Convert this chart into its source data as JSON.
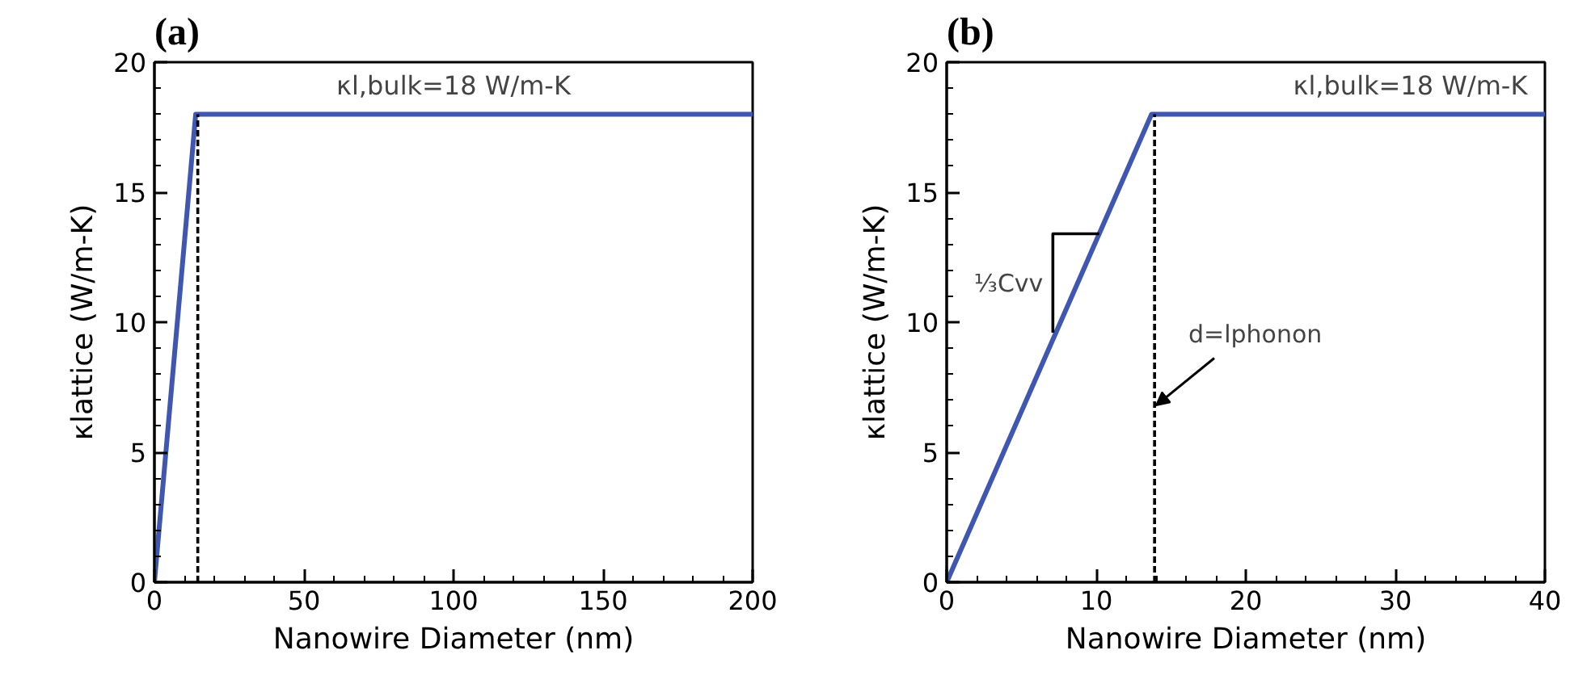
{
  "chart_data": [
    {
      "type": "line",
      "title": "(a)",
      "xlabel": "Nanowire Diameter (nm)",
      "ylabel": "κlattice (W/m-K)",
      "xlim": [
        0,
        200
      ],
      "xticks": [
        0,
        50,
        100,
        150,
        200
      ],
      "ylim": [
        0,
        20
      ],
      "yticks": [
        0,
        5,
        10,
        15,
        20
      ],
      "grid": false,
      "series": [
        {
          "color": "#3f57b0",
          "x": [
            0,
            13.8,
            200
          ],
          "values": [
            0,
            18,
            18
          ],
          "line_style": "solid"
        },
        {
          "color": "#000000",
          "x": [
            14.5,
            14.5
          ],
          "values": [
            0,
            18
          ],
          "line_style": "dashed"
        }
      ],
      "annotations": [
        {
          "text": "κl,bulk=18 W/m-K",
          "x": 100,
          "y": 18
        }
      ]
    },
    {
      "type": "line",
      "title": "(b)",
      "xlabel": "Nanowire Diameter (nm)",
      "ylabel": "κlattice (W/m-K)",
      "xlim": [
        0,
        40
      ],
      "xticks": [
        0,
        10,
        20,
        30,
        40
      ],
      "ylim": [
        0,
        20
      ],
      "yticks": [
        0,
        5,
        10,
        15,
        20
      ],
      "grid": false,
      "series": [
        {
          "color": "#3f57b0",
          "x": [
            0,
            13.7,
            40
          ],
          "values": [
            0,
            18,
            18
          ],
          "line_style": "solid"
        },
        {
          "color": "#000000",
          "x": [
            13.9,
            13.9
          ],
          "values": [
            0,
            18
          ],
          "line_style": "dashed"
        },
        {
          "color": "#000000",
          "x": [
            7.1,
            7.1,
            10.2
          ],
          "values": [
            9.6,
            13.4,
            13.4
          ],
          "line_style": "solid"
        }
      ],
      "annotations": [
        {
          "text": "κl,bulk=18 W/m-K",
          "x": 31,
          "y": 18
        },
        {
          "text": "⅓Cvv",
          "x": 7.1,
          "y": 11.5
        },
        {
          "text": "d=lphonon",
          "x": 14,
          "y": 6.8
        }
      ]
    }
  ]
}
